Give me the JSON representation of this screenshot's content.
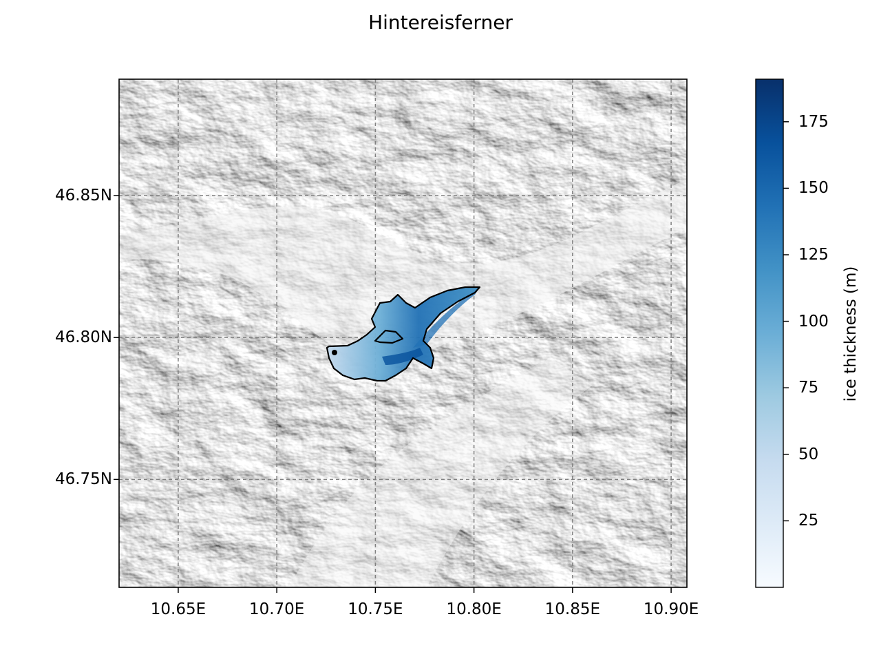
{
  "title": "Hintereisferner",
  "colors": {
    "grid": "#808080",
    "outline": "#000000",
    "colormap": "Blues",
    "colormap_low": "#f7fbff",
    "colormap_high": "#08306b"
  },
  "map": {
    "x_ticks": [
      {
        "value": 10.65,
        "label": "10.65E"
      },
      {
        "value": 10.7,
        "label": "10.70E"
      },
      {
        "value": 10.75,
        "label": "10.75E"
      },
      {
        "value": 10.8,
        "label": "10.80E"
      },
      {
        "value": 10.85,
        "label": "10.85E"
      },
      {
        "value": 10.9,
        "label": "10.90E"
      }
    ],
    "y_ticks": [
      {
        "value": 46.85,
        "label": "46.85N"
      },
      {
        "value": 46.8,
        "label": "46.80N"
      },
      {
        "value": 46.75,
        "label": "46.75N"
      }
    ],
    "xlim": [
      10.62,
      10.908
    ],
    "ylim": [
      46.712,
      46.891
    ],
    "grid": true,
    "background": "hillshade (grayscale)",
    "glacier_outline": true
  },
  "colorbar": {
    "label": "ice thickness (m)",
    "range": [
      0,
      191
    ],
    "ticks": [
      {
        "value": 25,
        "label": "25"
      },
      {
        "value": 50,
        "label": "50"
      },
      {
        "value": 75,
        "label": "75"
      },
      {
        "value": 100,
        "label": "100"
      },
      {
        "value": 125,
        "label": "125"
      },
      {
        "value": 150,
        "label": "150"
      },
      {
        "value": 175,
        "label": "175"
      }
    ]
  }
}
